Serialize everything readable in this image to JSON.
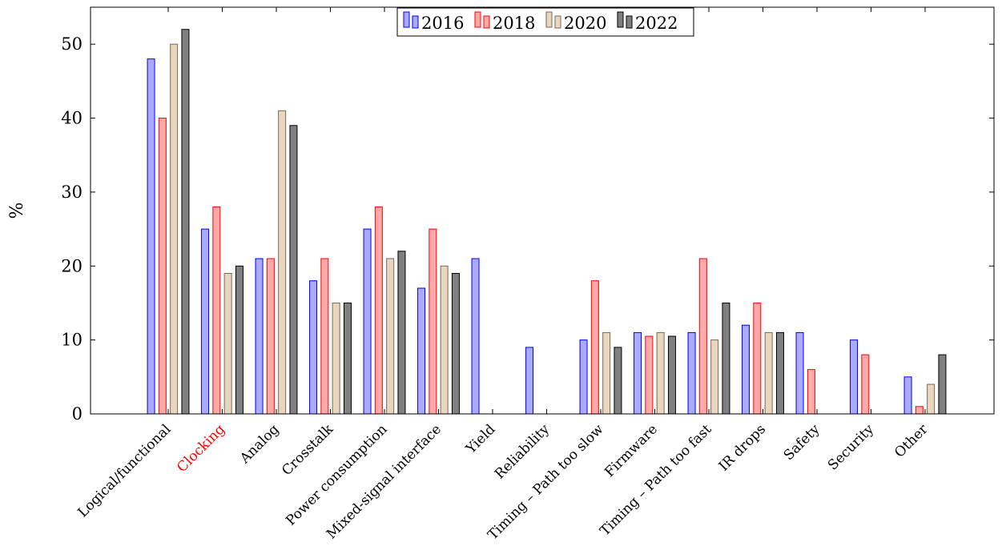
{
  "chart_data": {
    "type": "bar",
    "title": "",
    "xlabel": "",
    "ylabel": "%",
    "ylim": [
      0,
      55
    ],
    "yticks": [
      0,
      10,
      20,
      30,
      40,
      50
    ],
    "grid": false,
    "legend_position": "top-center",
    "categories": [
      "Logical/functional",
      "Clocking",
      "Analog",
      "Crosstalk",
      "Power consumption",
      "Mixed-signal interface",
      "Yield",
      "Reliability",
      "Timing – Path too slow",
      "Firmware",
      "Timing – Path too fast",
      "IR drops",
      "Safety",
      "Security",
      "Other"
    ],
    "highlighted_category": "Clocking",
    "highlight_color": "#ff0000",
    "series": [
      {
        "name": "2016",
        "color": "#0000ff",
        "fill": "#aaaaff",
        "values": [
          48,
          25,
          21,
          18,
          25,
          17,
          21,
          9,
          10,
          11,
          11,
          12,
          11,
          10,
          5
        ]
      },
      {
        "name": "2018",
        "color": "#ff0000",
        "fill": "#ffaaaa",
        "values": [
          40,
          28,
          21,
          21,
          28,
          25,
          null,
          null,
          18,
          10.5,
          21,
          15,
          6,
          8,
          1
        ]
      },
      {
        "name": "2020",
        "color": "#7a6a50",
        "fill": "#ead6c0",
        "values": [
          50,
          19,
          41,
          15,
          21,
          20,
          null,
          null,
          11,
          11,
          10,
          11,
          null,
          null,
          4
        ]
      },
      {
        "name": "2022",
        "color": "#000000",
        "fill": "#808080",
        "values": [
          52,
          20,
          39,
          15,
          22,
          19,
          null,
          null,
          9,
          10.5,
          15,
          11,
          null,
          null,
          8
        ]
      }
    ]
  }
}
